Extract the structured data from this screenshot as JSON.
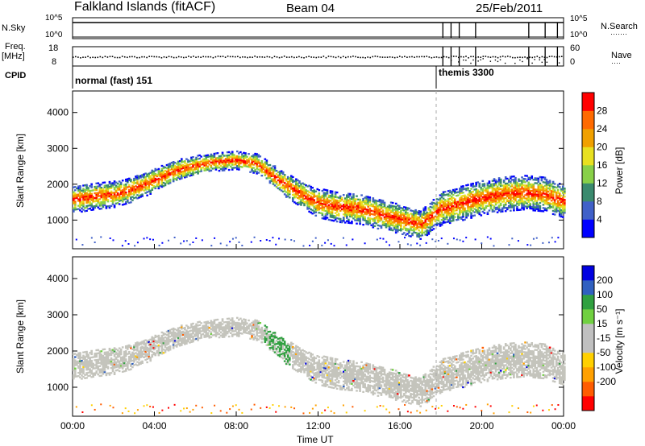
{
  "header": {
    "station": "Falkland Islands (fitACF)",
    "beam": "Beam 04",
    "date": "25/Feb/2011"
  },
  "strip_labels": {
    "nsky": "N.Sky",
    "freq": "Freq.",
    "mhz": "[MHz]",
    "cpid": "CPID",
    "nsearch": "N.Search",
    "nave": "Nave",
    "dots_long": "·······",
    "dots_short": "····",
    "nsky_ticks": [
      "10^5",
      "10^0"
    ],
    "nsearch_ticks": [
      "10^5",
      "10^0"
    ],
    "freq_ticks": [
      "18",
      "8"
    ],
    "nave_ticks": [
      "60",
      "0"
    ]
  },
  "cpid": {
    "segments": [
      {
        "label": "normal (fast) 151",
        "start_h": 0
      },
      {
        "label": "themis 3300",
        "start_h": 18
      }
    ]
  },
  "colors": {
    "power": [
      "#0000ff",
      "#4060c8",
      "#3a8a6e",
      "#88d048",
      "#e8e020",
      "#f0a000",
      "#ff6a00",
      "#ff0000"
    ],
    "velocity": [
      "#ff0000",
      "#ff5c00",
      "#ffa000",
      "#ffd000",
      "#c0c0c0",
      "#c0c0c0",
      "#70d040",
      "#30a040",
      "#3060c0",
      "#0000e0"
    ],
    "echo_gray": "#c4c4bc"
  },
  "chart_data": [
    {
      "type": "heatmap",
      "panel": "power",
      "ylabel": "Slant Range [km]",
      "yticks": [
        "1000",
        "2000",
        "3000",
        "4000"
      ],
      "ylim": [
        200,
        4600
      ],
      "colorbar_label": "Power [dB]",
      "colorbar_ticks": [
        "4",
        "8",
        "12",
        "16",
        "20",
        "24",
        "28"
      ],
      "echo_band": {
        "time_h": [
          0,
          1,
          2,
          3,
          4,
          5,
          6,
          7,
          8,
          9,
          10,
          11,
          12,
          13,
          14,
          15,
          16,
          17,
          18,
          19,
          20,
          21,
          22,
          23,
          24
        ],
        "range_center_km": [
          1550,
          1650,
          1700,
          1850,
          2100,
          2350,
          2500,
          2600,
          2650,
          2550,
          2100,
          1750,
          1450,
          1350,
          1300,
          1150,
          1000,
          850,
          1300,
          1450,
          1600,
          1700,
          1750,
          1700,
          1500
        ],
        "thickness_km": [
          450,
          450,
          420,
          380,
          350,
          300,
          250,
          200,
          200,
          250,
          350,
          400,
          500,
          550,
          550,
          550,
          500,
          500,
          600,
          650,
          650,
          650,
          650,
          650,
          600
        ]
      }
    },
    {
      "type": "heatmap",
      "panel": "velocity",
      "xlabel": "Time UT",
      "ylabel": "Slant Range [km]",
      "xticks": [
        "00:00",
        "04:00",
        "08:00",
        "12:00",
        "16:00",
        "20:00",
        "00:00"
      ],
      "yticks": [
        "1000",
        "2000",
        "3000",
        "4000"
      ],
      "colorbar_label": "Velocity [m s⁻¹]",
      "colorbar_ticks": [
        "200",
        "100",
        "50",
        "15",
        "-15",
        "-50",
        "-100",
        "-200"
      ]
    }
  ]
}
